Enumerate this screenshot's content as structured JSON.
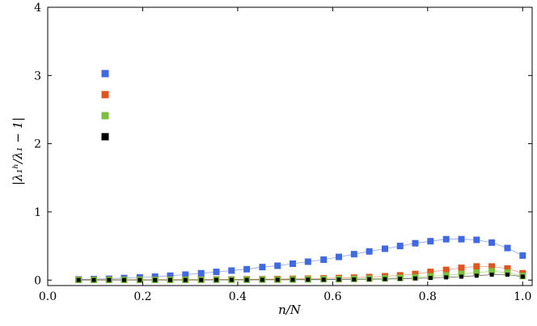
{
  "chart_data": {
    "type": "scatter",
    "xlabel": "n/N",
    "ylabel": "|λ₁ʰ/λ₁ − 1|",
    "xlim": [
      0.0,
      1.02
    ],
    "ylim": [
      -0.08,
      4.0
    ],
    "xticks": [
      "0.0",
      "0.2",
      "0.4",
      "0.6",
      "0.8",
      "1.0"
    ],
    "yticks": [
      "0",
      "1",
      "2",
      "3",
      "4"
    ],
    "grid": false,
    "legend_position": "upper-left",
    "x": [
      0.065,
      0.097,
      0.129,
      0.161,
      0.194,
      0.226,
      0.258,
      0.29,
      0.323,
      0.355,
      0.387,
      0.419,
      0.452,
      0.484,
      0.516,
      0.548,
      0.581,
      0.613,
      0.645,
      0.677,
      0.71,
      0.742,
      0.774,
      0.806,
      0.839,
      0.871,
      0.903,
      0.935,
      0.968,
      1.0
    ],
    "series": [
      {
        "color": "#4169e1",
        "marker": "square",
        "values": [
          0.01,
          0.015,
          0.02,
          0.03,
          0.04,
          0.05,
          0.065,
          0.08,
          0.1,
          0.12,
          0.14,
          0.16,
          0.19,
          0.21,
          0.24,
          0.27,
          0.3,
          0.34,
          0.38,
          0.42,
          0.46,
          0.5,
          0.54,
          0.57,
          0.6,
          0.6,
          0.59,
          0.55,
          0.47,
          0.36
        ]
      },
      {
        "color": "#e0541f",
        "marker": "square",
        "values": [
          0.005,
          0.005,
          0.005,
          0.005,
          0.005,
          0.005,
          0.006,
          0.007,
          0.008,
          0.009,
          0.01,
          0.011,
          0.013,
          0.015,
          0.018,
          0.021,
          0.025,
          0.03,
          0.036,
          0.045,
          0.056,
          0.07,
          0.09,
          0.12,
          0.15,
          0.18,
          0.2,
          0.2,
          0.17,
          0.1
        ]
      },
      {
        "color": "#7cbf3f",
        "marker": "square",
        "values": [
          0.003,
          0.003,
          0.003,
          0.003,
          0.003,
          0.003,
          0.003,
          0.003,
          0.004,
          0.004,
          0.005,
          0.005,
          0.006,
          0.007,
          0.008,
          0.01,
          0.012,
          0.014,
          0.017,
          0.021,
          0.026,
          0.033,
          0.042,
          0.055,
          0.07,
          0.09,
          0.11,
          0.13,
          0.11,
          0.06
        ]
      },
      {
        "color": "#000000",
        "marker": "square-small",
        "values": [
          0.002,
          0.002,
          0.002,
          0.002,
          0.002,
          0.002,
          0.002,
          0.002,
          0.002,
          0.003,
          0.003,
          0.003,
          0.004,
          0.004,
          0.005,
          0.006,
          0.007,
          0.008,
          0.01,
          0.012,
          0.015,
          0.019,
          0.024,
          0.031,
          0.04,
          0.05,
          0.065,
          0.08,
          0.08,
          0.05
        ]
      }
    ]
  }
}
